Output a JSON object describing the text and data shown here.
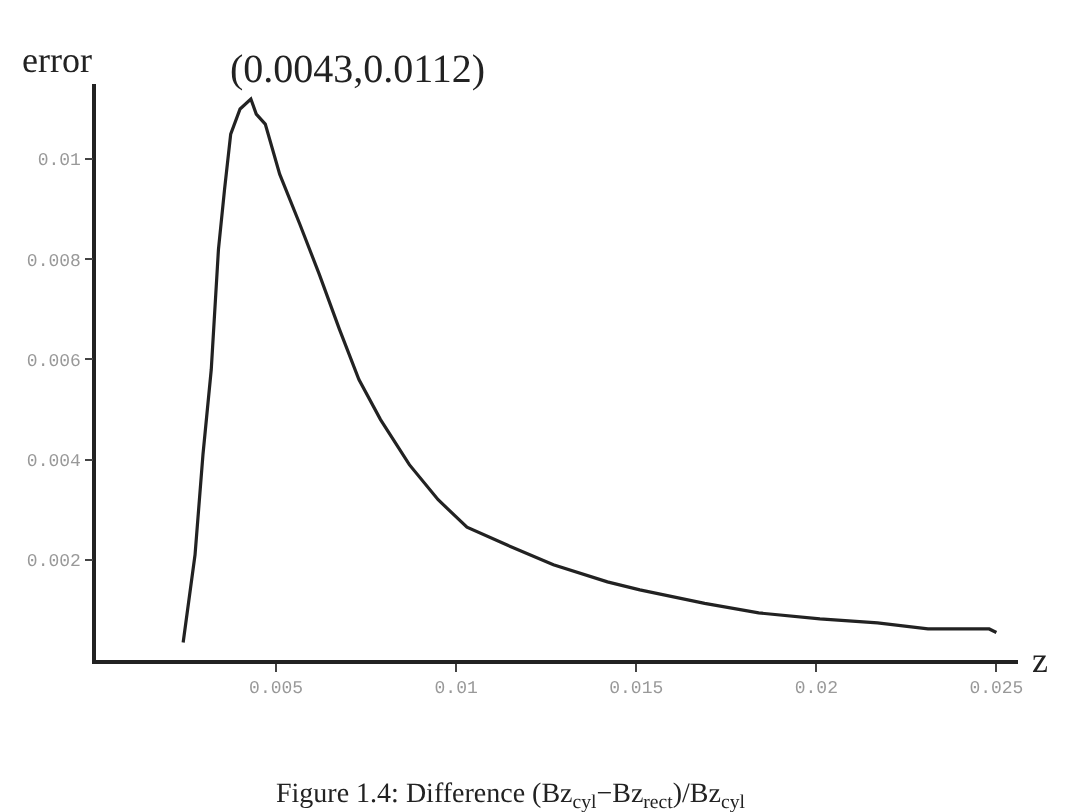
{
  "chart_data": {
    "type": "line",
    "xlabel": "z",
    "ylabel": "error",
    "x": [
      0.00242,
      0.00275,
      0.00297,
      0.0032,
      0.0034,
      0.00357,
      0.00374,
      0.004,
      0.0043,
      0.00445,
      0.0047,
      0.0051,
      0.00566,
      0.0062,
      0.00676,
      0.0073,
      0.0079,
      0.0087,
      0.0095,
      0.0103,
      0.0114,
      0.0127,
      0.0142,
      0.0151,
      0.0169,
      0.0184,
      0.0201,
      0.0217,
      0.0231,
      0.0248,
      0.025
    ],
    "series": [
      {
        "color": "#222222",
        "values": [
          0.00035,
          0.0021,
          0.0041,
          0.0058,
          0.0082,
          0.0094,
          0.0105,
          0.011,
          0.0112,
          0.0109,
          0.0107,
          0.0097,
          0.0087,
          0.0077,
          0.0066,
          0.0056,
          0.0048,
          0.0039,
          0.0032,
          0.00265,
          0.0023,
          0.0019,
          0.00156,
          0.0014,
          0.00113,
          0.00094,
          0.00082,
          0.00074,
          0.00062,
          0.00062,
          0.00055
        ]
      }
    ],
    "xlim": [
      0,
      0.0256
    ],
    "ylim": [
      0,
      0.0115
    ],
    "xticks": [
      0.005,
      0.01,
      0.015,
      0.02,
      0.025
    ],
    "yticks": [
      0.002,
      0.004,
      0.006,
      0.008,
      0.01
    ],
    "marker": "none",
    "line_style": "solid",
    "annotations": [
      {
        "text": "(0.0043,0.0112)",
        "x": 0.0043,
        "y": 0.0112
      },
      "Figure 1.4: Difference (Bz$_{cyl}$−Bz$_{rect}$)/Bz$_{cyl}$"
    ]
  }
}
